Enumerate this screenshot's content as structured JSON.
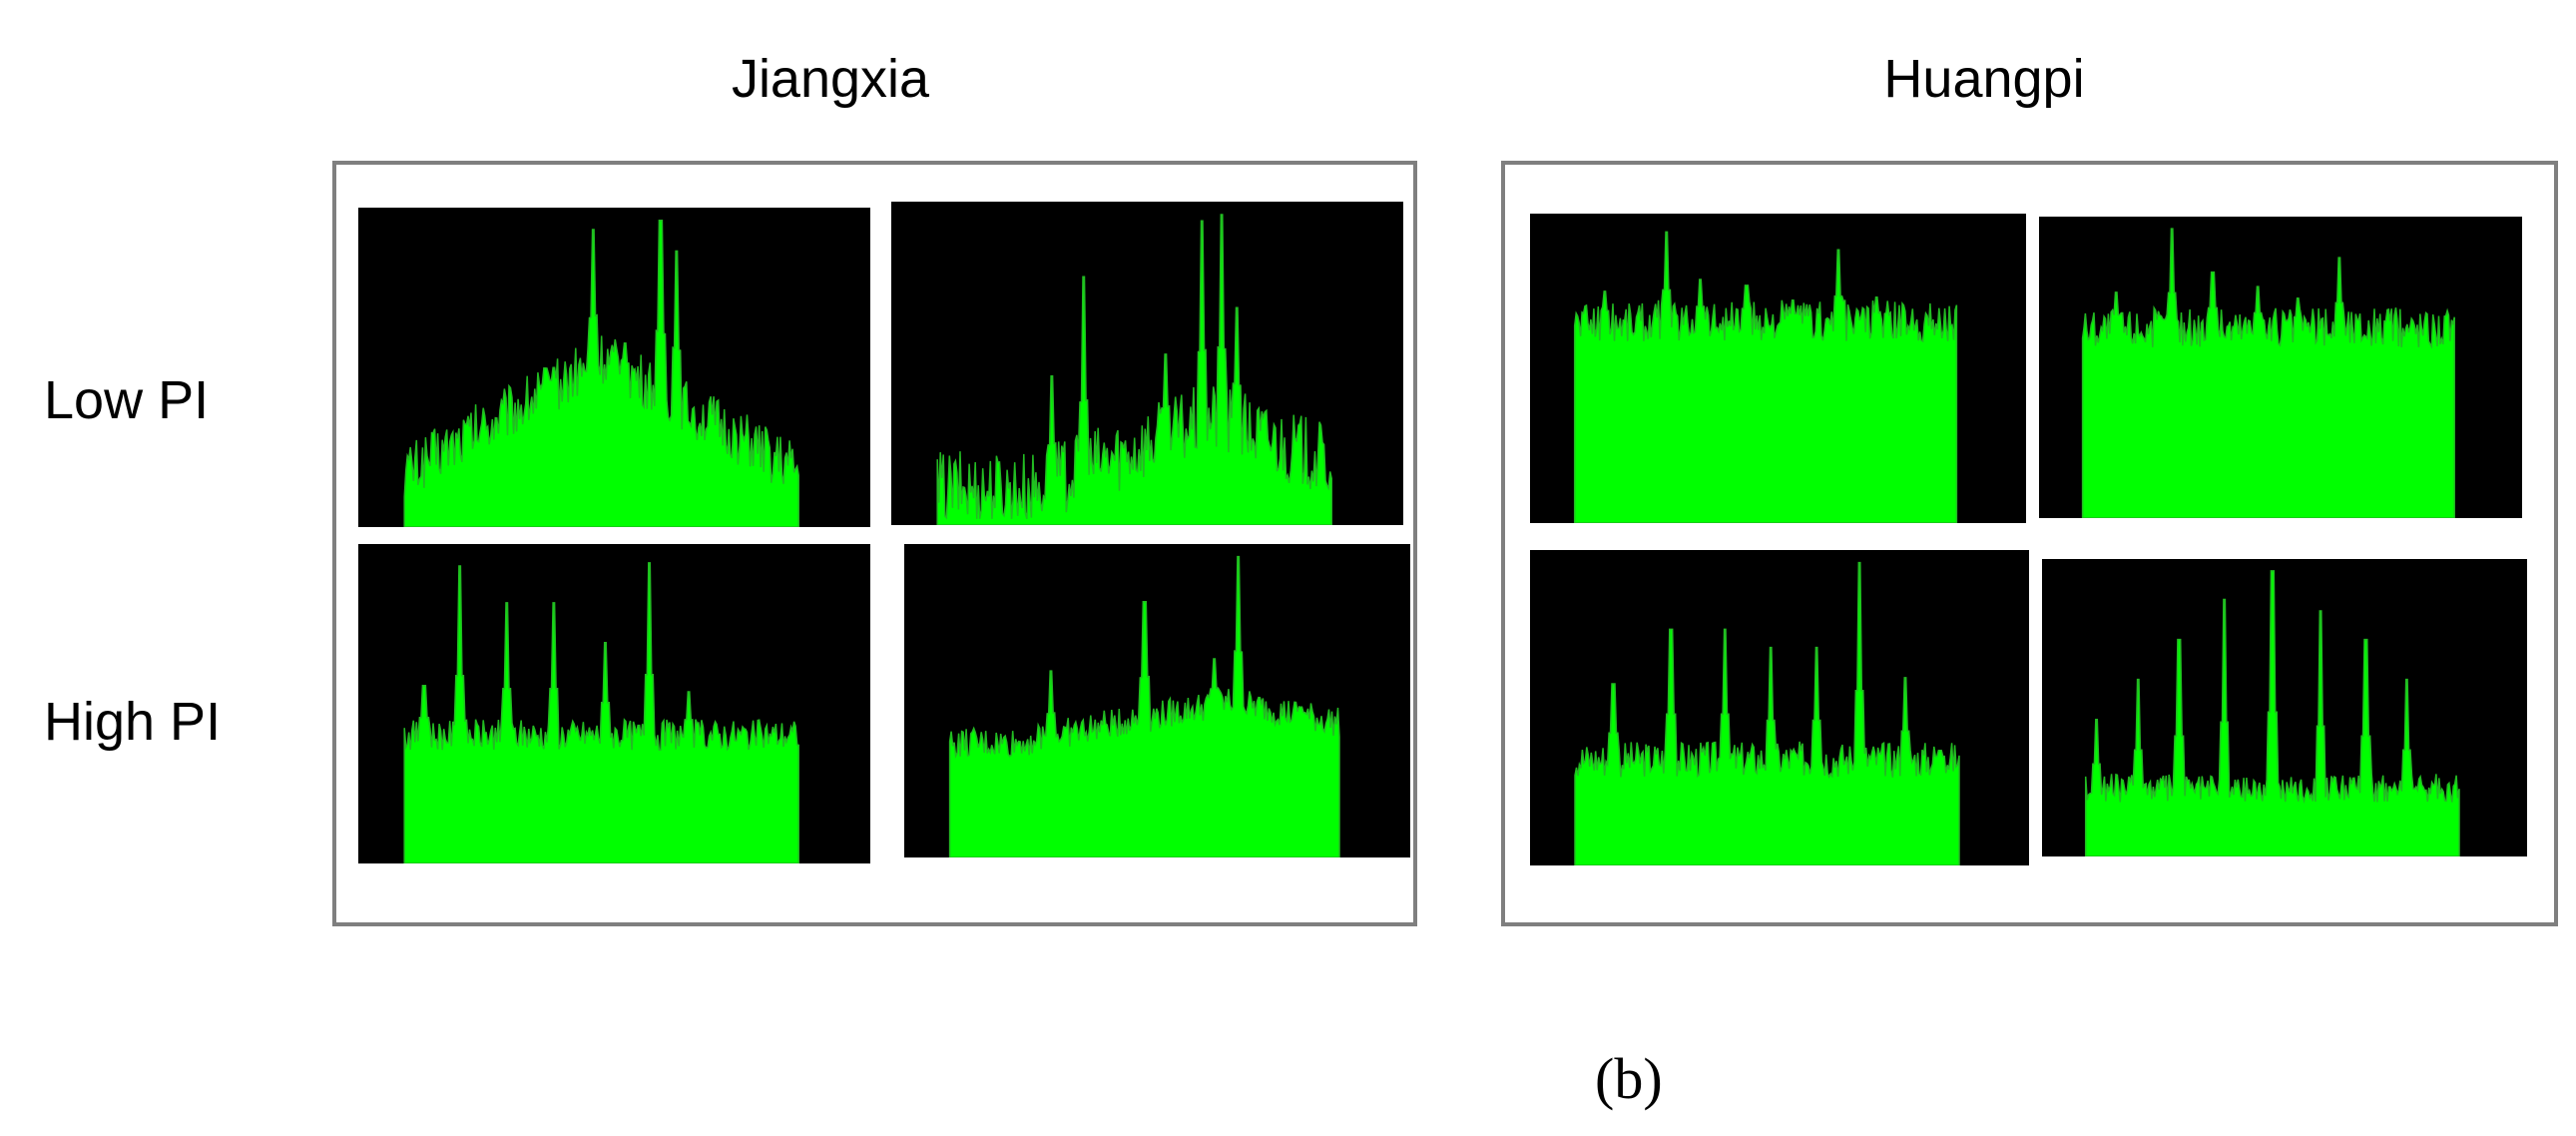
{
  "groups": {
    "left": {
      "title": "Jiangxia"
    },
    "right": {
      "title": "Huangpi"
    }
  },
  "rows": {
    "low": {
      "label": "Low PI"
    },
    "high": {
      "label": "High PI"
    }
  },
  "subfigure_label": "(b)",
  "colors": {
    "spectrum_fill": "#00ff00",
    "spectrum_stroke": "#22bb22",
    "spectrum_background": "#000000",
    "frame_border": "#7f7f7f"
  },
  "spectra": [
    {
      "group": "Jiangxia",
      "row": "Low PI",
      "shape": "tent",
      "base": 0.18,
      "peak": 0.55,
      "noise": 0.09,
      "spikes": [
        [
          0.48,
          0.97
        ],
        [
          0.65,
          1.0
        ],
        [
          0.69,
          0.9
        ],
        [
          0.38,
          0.52
        ],
        [
          0.56,
          0.6
        ]
      ]
    },
    {
      "group": "Jiangxia",
      "row": "Low PI",
      "shape": "tent-right",
      "base": 0.12,
      "peak": 0.35,
      "noise": 0.12,
      "spikes": [
        [
          0.37,
          0.8
        ],
        [
          0.67,
          0.98
        ],
        [
          0.72,
          1.0
        ],
        [
          0.29,
          0.48
        ],
        [
          0.58,
          0.55
        ],
        [
          0.76,
          0.7
        ]
      ]
    },
    {
      "group": "Jiangxia",
      "row": "High PI",
      "shape": "flat",
      "base": 0.42,
      "peak": 0.42,
      "noise": 0.05,
      "spikes": [
        [
          0.14,
          0.97
        ],
        [
          0.26,
          0.85
        ],
        [
          0.38,
          0.85
        ],
        [
          0.51,
          0.72
        ],
        [
          0.62,
          0.98
        ],
        [
          0.05,
          0.58
        ],
        [
          0.72,
          0.56
        ]
      ]
    },
    {
      "group": "Jiangxia",
      "row": "High PI",
      "shape": "flat-rise",
      "base": 0.38,
      "peak": 0.52,
      "noise": 0.05,
      "spikes": [
        [
          0.5,
          0.85
        ],
        [
          0.74,
          1.0
        ],
        [
          0.26,
          0.62
        ],
        [
          0.68,
          0.66
        ],
        [
          0.9,
          0.5
        ]
      ]
    },
    {
      "group": "Huangpi",
      "row": "Low PI",
      "shape": "flat-high",
      "base": 0.68,
      "peak": 0.68,
      "noise": 0.07,
      "spikes": [
        [
          0.24,
          0.98
        ],
        [
          0.69,
          0.92
        ],
        [
          0.08,
          0.78
        ],
        [
          0.33,
          0.82
        ],
        [
          0.45,
          0.8
        ],
        [
          0.57,
          0.75
        ],
        [
          0.79,
          0.76
        ]
      ]
    },
    {
      "group": "Huangpi",
      "row": "Low PI",
      "shape": "flat-high",
      "base": 0.66,
      "peak": 0.66,
      "noise": 0.07,
      "spikes": [
        [
          0.24,
          1.0
        ],
        [
          0.69,
          0.9
        ],
        [
          0.35,
          0.85
        ],
        [
          0.47,
          0.8
        ],
        [
          0.58,
          0.76
        ],
        [
          0.09,
          0.78
        ],
        [
          0.82,
          0.72
        ]
      ]
    },
    {
      "group": "Huangpi",
      "row": "High PI",
      "shape": "flat",
      "base": 0.35,
      "peak": 0.35,
      "noise": 0.06,
      "spikes": [
        [
          0.74,
          1.0
        ],
        [
          0.25,
          0.78
        ],
        [
          0.39,
          0.78
        ],
        [
          0.51,
          0.72
        ],
        [
          0.63,
          0.72
        ],
        [
          0.86,
          0.62
        ],
        [
          0.1,
          0.6
        ],
        [
          0.95,
          0.38
        ]
      ]
    },
    {
      "group": "Huangpi",
      "row": "High PI",
      "shape": "flat",
      "base": 0.24,
      "peak": 0.24,
      "noise": 0.05,
      "spikes": [
        [
          0.5,
          1.0
        ],
        [
          0.37,
          0.9
        ],
        [
          0.63,
          0.86
        ],
        [
          0.25,
          0.76
        ],
        [
          0.75,
          0.76
        ],
        [
          0.14,
          0.62
        ],
        [
          0.86,
          0.62
        ],
        [
          0.03,
          0.48
        ]
      ]
    }
  ]
}
